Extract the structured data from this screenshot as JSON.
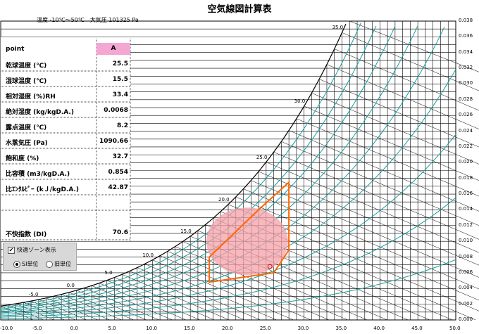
{
  "title": "空気線図計算表",
  "subtitle": "温度 -10℃～50℃　大気圧 101325 Pa",
  "table": {
    "header_label": "point",
    "column_label": "A",
    "rows": [
      {
        "label": "乾球温度 (℃)",
        "value": "25.5"
      },
      {
        "label": "湿球温度 (℃)",
        "value": "15.5"
      },
      {
        "label": "相対湿度 (%)RH",
        "value": "33.4"
      },
      {
        "label": "絶対湿度 (kg/kgD.A.)",
        "value": "0.0068"
      },
      {
        "label": "露点温度 (℃)",
        "value": "8.2"
      },
      {
        "label": "水蒸気圧 (Pa)",
        "value": "1090.66"
      },
      {
        "label": "飽和度 (%)",
        "value": "32.7"
      },
      {
        "label": "比容積 (m3/kgD.A.)",
        "value": "0.854"
      },
      {
        "label": "比ｴﾝﾀﾙﾋﾟｰ (kＪ/kgD.A.)",
        "value": "42.87"
      },
      {
        "label": "",
        "value": ""
      },
      {
        "label": "不快指数 (DI)",
        "value": "70.6"
      }
    ]
  },
  "controls": {
    "comfort_zone_label": "快適ゾーン表示",
    "comfort_zone_checked": true,
    "si_unit_label": "SI単位",
    "old_unit_label": "旧単位",
    "si_selected": true
  },
  "chart_data": {
    "type": "line",
    "x_ticks": [
      "-10.0",
      "-5.0",
      "0.0",
      "5.0",
      "10.0",
      "15.0",
      "20.0",
      "25.0",
      "30.0",
      "35.0",
      "40.0",
      "45.0",
      "50.0"
    ],
    "y_ticks": [
      "0.000",
      "0.002",
      "0.004",
      "0.006",
      "0.008",
      "0.010",
      "0.012",
      "0.014",
      "0.016",
      "0.018",
      "0.020",
      "0.022",
      "0.024",
      "0.026",
      "0.028",
      "0.030",
      "0.032",
      "0.034",
      "0.036",
      "0.038"
    ],
    "xlim": [
      -10,
      50
    ],
    "ylim": [
      0,
      0.038
    ],
    "saturation_labels": [
      "-5.0",
      "0.0",
      "5.0",
      "10.0",
      "15.0",
      "20.0",
      "25.0",
      "30.0",
      "35.0"
    ],
    "point_A": {
      "x": 25.5,
      "y": 0.0068
    },
    "comfort_zone": [
      [
        17.5,
        0.0048
      ],
      [
        26,
        0.006
      ],
      [
        28,
        0.0089
      ],
      [
        28,
        0.0175
      ],
      [
        24,
        0.014
      ],
      [
        17.5,
        0.008
      ]
    ],
    "comfort_ellipse_center": {
      "x": 22.5,
      "y": 0.01
    }
  },
  "colors": {
    "grid": "#000000",
    "teal": "#1a9c9c",
    "zone": "#ff6600",
    "ellipse": "#f4a0a8",
    "header": "#f4a7d3"
  }
}
